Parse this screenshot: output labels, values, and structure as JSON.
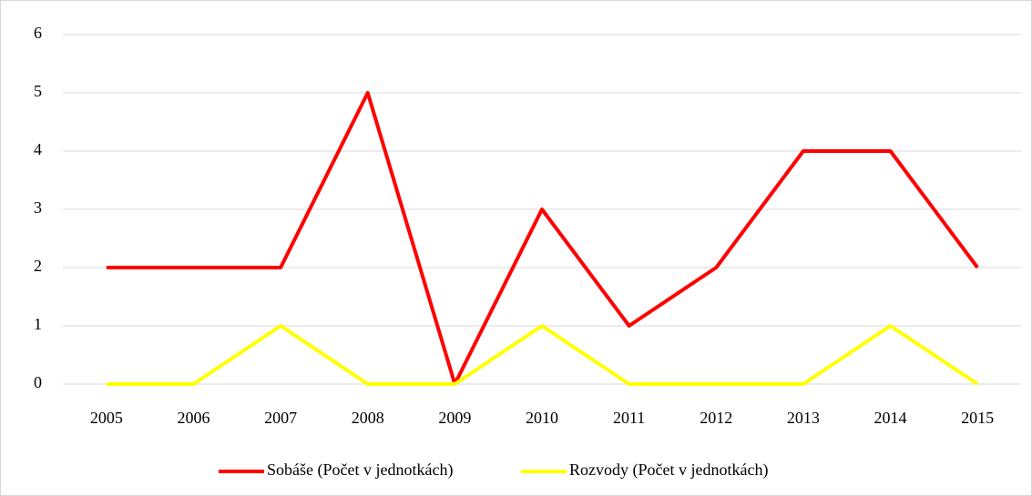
{
  "chart_data": {
    "type": "line",
    "categories": [
      "2005",
      "2006",
      "2007",
      "2008",
      "2009",
      "2010",
      "2011",
      "2012",
      "2013",
      "2014",
      "2015"
    ],
    "series": [
      {
        "name": "Sobáše (Počet v jednotkách)",
        "color": "#ff0000",
        "values": [
          2,
          2,
          2,
          5,
          0,
          3,
          1,
          2,
          4,
          4,
          2
        ]
      },
      {
        "name": "Rozvody (Počet v jednotkách)",
        "color": "#ffff00",
        "values": [
          0,
          0,
          1,
          0,
          0,
          1,
          0,
          0,
          0,
          1,
          0
        ]
      }
    ],
    "ylim": [
      0,
      6
    ],
    "yticks": [
      0,
      1,
      2,
      3,
      4,
      5,
      6
    ],
    "grid": true,
    "legend": "bottom"
  }
}
